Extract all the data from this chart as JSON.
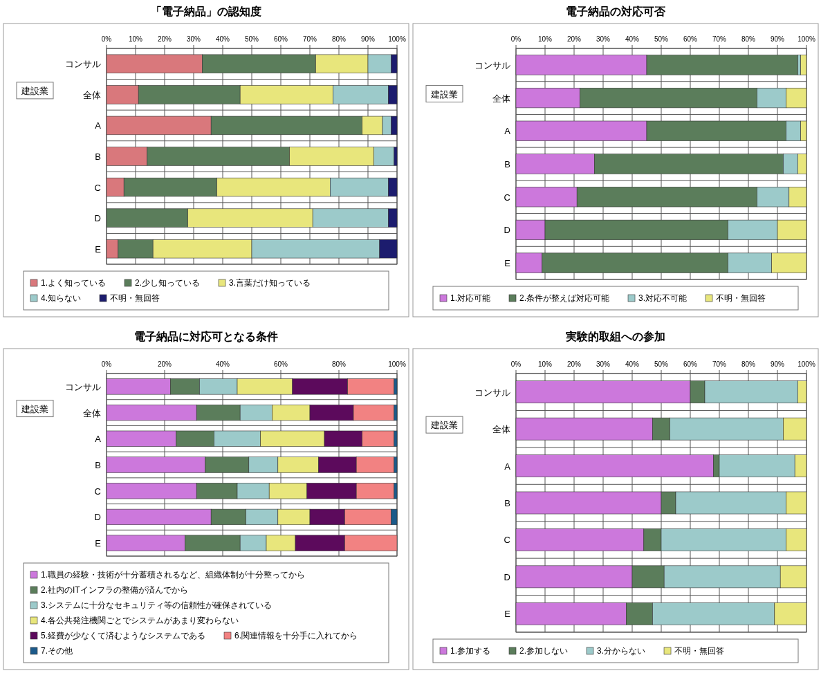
{
  "chart_data": [
    {
      "type": "bar",
      "orientation": "horizontal",
      "stacked": true,
      "title": "「電子納品」の認知度",
      "categories": [
        "コンサル",
        "全体",
        "A",
        "B",
        "C",
        "D",
        "E"
      ],
      "xlim": [
        0,
        100
      ],
      "xticks": [
        {
          "value": 0,
          "label": "0%"
        },
        {
          "value": 10,
          "label": "10%"
        },
        {
          "value": 20,
          "label": "20%"
        },
        {
          "value": 30,
          "label": "30%"
        },
        {
          "value": 40,
          "label": "40%"
        },
        {
          "value": 50,
          "label": "50%"
        },
        {
          "value": 60,
          "label": "60%"
        },
        {
          "value": 70,
          "label": "70%"
        },
        {
          "value": 80,
          "label": "80%"
        },
        {
          "value": 90,
          "label": "90%"
        },
        {
          "value": 100,
          "label": "100%"
        }
      ],
      "grid": true,
      "legend": "bottom",
      "annotations": [
        "建設業"
      ],
      "series": [
        {
          "name": "1.よく知っている",
          "color": "#d9787c",
          "values": [
            33,
            11,
            36,
            14,
            6,
            0,
            4
          ]
        },
        {
          "name": "2.少し知っている",
          "color": "#5b7d5b",
          "values": [
            39,
            35,
            52,
            49,
            32,
            28,
            12
          ]
        },
        {
          "name": "3.言葉だけ知っている",
          "color": "#e8e67c",
          "values": [
            18,
            32,
            7,
            29,
            39,
            43,
            34
          ]
        },
        {
          "name": "4.知らない",
          "color": "#9ccaca",
          "values": [
            8,
            19,
            3,
            7,
            20,
            26,
            44
          ]
        },
        {
          "name": "不明・無回答",
          "color": "#1c1c6e",
          "values": [
            2,
            3,
            2,
            1,
            3,
            3,
            6
          ]
        }
      ]
    },
    {
      "type": "bar",
      "orientation": "horizontal",
      "stacked": true,
      "title": "電子納品の対応可否",
      "categories": [
        "コンサル",
        "全体",
        "A",
        "B",
        "C",
        "D",
        "E"
      ],
      "xlim": [
        0,
        100
      ],
      "xticks": [
        {
          "value": 0,
          "label": "0%"
        },
        {
          "value": 10,
          "label": "10%"
        },
        {
          "value": 20,
          "label": "20%"
        },
        {
          "value": 30,
          "label": "30%"
        },
        {
          "value": 40,
          "label": "40%"
        },
        {
          "value": 50,
          "label": "50%"
        },
        {
          "value": 60,
          "label": "60%"
        },
        {
          "value": 70,
          "label": "70%"
        },
        {
          "value": 80,
          "label": "80%"
        },
        {
          "value": 90,
          "label": "90%"
        },
        {
          "value": 100,
          "label": "100%"
        }
      ],
      "grid": true,
      "legend": "bottom",
      "annotations": [
        "建設業"
      ],
      "series": [
        {
          "name": "1.対応可能",
          "color": "#cc78dc",
          "values": [
            45,
            22,
            45,
            27,
            21,
            10,
            9
          ]
        },
        {
          "name": "2.条件が整えば対応可能",
          "color": "#5b7d5b",
          "values": [
            52,
            61,
            48,
            65,
            62,
            63,
            64
          ]
        },
        {
          "name": "3.対応不可能",
          "color": "#9ccaca",
          "values": [
            1,
            10,
            5,
            5,
            11,
            17,
            15
          ]
        },
        {
          "name": "不明・無回答",
          "color": "#e8e67c",
          "values": [
            2,
            7,
            2,
            3,
            6,
            10,
            12
          ]
        }
      ]
    },
    {
      "type": "bar",
      "orientation": "horizontal",
      "stacked": true,
      "title": "電子納品に対応可となる条件",
      "categories": [
        "コンサル",
        "全体",
        "A",
        "B",
        "C",
        "D",
        "E"
      ],
      "xlim": [
        0,
        100
      ],
      "xticks": [
        {
          "value": 0,
          "label": "0%"
        },
        {
          "value": 20,
          "label": "20%"
        },
        {
          "value": 40,
          "label": "40%"
        },
        {
          "value": 60,
          "label": "60%"
        },
        {
          "value": 80,
          "label": "80%"
        },
        {
          "value": 100,
          "label": "100%"
        }
      ],
      "grid": true,
      "legend": "bottom",
      "annotations": [
        "建設業"
      ],
      "series": [
        {
          "name": "1.職員の経験・技術が十分蓄積されるなど、組織体制が十分整ってから",
          "color": "#cc78dc",
          "values": [
            22,
            31,
            24,
            34,
            31,
            36,
            27
          ]
        },
        {
          "name": "2.社内のITインフラの整備が済んでから",
          "color": "#5b7d5b",
          "values": [
            10,
            15,
            13,
            15,
            14,
            12,
            19
          ]
        },
        {
          "name": "3.システムに十分なセキュリティ等の信頼性が確保されている",
          "color": "#9ccaca",
          "values": [
            13,
            11,
            16,
            10,
            11,
            11,
            9
          ]
        },
        {
          "name": "4.各公共発注機関ごとでシステムがあまり変わらない",
          "color": "#e8e67c",
          "values": [
            19,
            13,
            22,
            14,
            13,
            11,
            10
          ]
        },
        {
          "name": "5.経費が少なくて済むようなシステムである",
          "color": "#5c0a5c",
          "values": [
            19,
            15,
            13,
            13,
            17,
            12,
            17
          ]
        },
        {
          "name": "6.関連情報を十分手に入れてから",
          "color": "#f28282",
          "values": [
            16,
            14,
            11,
            13,
            13,
            16,
            18
          ]
        },
        {
          "name": "7.その他",
          "color": "#1c5a8a",
          "values": [
            1,
            1,
            1,
            1,
            1,
            2,
            0
          ]
        }
      ]
    },
    {
      "type": "bar",
      "orientation": "horizontal",
      "stacked": true,
      "title": "実験的取組への参加",
      "categories": [
        "コンサル",
        "全体",
        "A",
        "B",
        "C",
        "D",
        "E"
      ],
      "xlim": [
        0,
        100
      ],
      "xticks": [
        {
          "value": 0,
          "label": "0%"
        },
        {
          "value": 10,
          "label": "10%"
        },
        {
          "value": 20,
          "label": "20%"
        },
        {
          "value": 30,
          "label": "30%"
        },
        {
          "value": 40,
          "label": "40%"
        },
        {
          "value": 50,
          "label": "50%"
        },
        {
          "value": 60,
          "label": "60%"
        },
        {
          "value": 70,
          "label": "70%"
        },
        {
          "value": 80,
          "label": "80%"
        },
        {
          "value": 90,
          "label": "90%"
        },
        {
          "value": 100,
          "label": "100%"
        }
      ],
      "grid": true,
      "legend": "bottom",
      "annotations": [
        "建設業"
      ],
      "series": [
        {
          "name": "1.参加する",
          "color": "#cc78dc",
          "values": [
            60,
            47,
            68,
            50,
            44,
            40,
            38
          ]
        },
        {
          "name": "2.参加しない",
          "color": "#5b7d5b",
          "values": [
            5,
            6,
            2,
            5,
            6,
            11,
            9
          ]
        },
        {
          "name": "3.分からない",
          "color": "#9ccaca",
          "values": [
            32,
            39,
            26,
            38,
            43,
            40,
            42
          ]
        },
        {
          "name": "不明・無回答",
          "color": "#e8e67c",
          "values": [
            3,
            8,
            4,
            7,
            7,
            9,
            11
          ]
        }
      ]
    }
  ]
}
